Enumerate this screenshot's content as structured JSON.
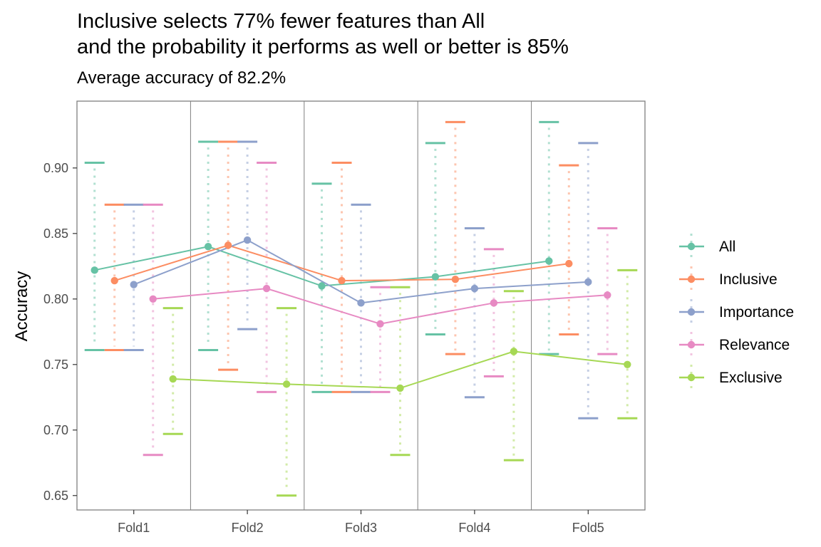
{
  "title_line1": "Inclusive selects 77% fewer features than All",
  "title_line2": "and the probability it performs as well or better is 85%",
  "subtitle": "Average accuracy of 82.2%",
  "chart_data": {
    "type": "line",
    "xlabel": "",
    "ylabel": "Accuracy",
    "ylim": [
      0.639,
      0.951
    ],
    "yticks": [
      0.65,
      0.7,
      0.75,
      0.8,
      0.85,
      0.9
    ],
    "ytick_labels": [
      "0.65",
      "0.70",
      "0.75",
      "0.80",
      "0.85",
      "0.90"
    ],
    "categories": [
      "Fold1",
      "Fold2",
      "Fold3",
      "Fold4",
      "Fold5"
    ],
    "grid": false,
    "legend_position": "right",
    "series": [
      {
        "name": "All",
        "color": "#66C2A5",
        "values": [
          0.822,
          0.84,
          0.81,
          0.817,
          0.829
        ],
        "max": [
          0.904,
          0.92,
          0.888,
          0.919,
          0.935
        ],
        "min": [
          0.761,
          0.761,
          0.729,
          0.773,
          0.758
        ]
      },
      {
        "name": "Inclusive",
        "color": "#FC8D62",
        "values": [
          0.814,
          0.841,
          0.814,
          0.815,
          0.827
        ],
        "max": [
          0.872,
          0.92,
          0.904,
          0.935,
          0.902
        ],
        "min": [
          0.761,
          0.746,
          0.729,
          0.758,
          0.773
        ]
      },
      {
        "name": "Importance",
        "color": "#8DA0CB",
        "values": [
          0.811,
          0.845,
          0.797,
          0.808,
          0.813
        ],
        "max": [
          0.872,
          0.92,
          0.872,
          0.854,
          0.919
        ],
        "min": [
          0.761,
          0.777,
          0.729,
          0.725,
          0.709
        ]
      },
      {
        "name": "Relevance",
        "color": "#E78AC3",
        "values": [
          0.8,
          0.808,
          0.781,
          0.797,
          0.803
        ],
        "max": [
          0.872,
          0.904,
          0.809,
          0.838,
          0.854
        ],
        "min": [
          0.681,
          0.729,
          0.729,
          0.741,
          0.758
        ]
      },
      {
        "name": "Exclusive",
        "color": "#A6D854",
        "values": [
          0.739,
          0.735,
          0.732,
          0.76,
          0.75
        ],
        "max": [
          0.793,
          0.793,
          0.809,
          0.806,
          0.822
        ],
        "min": [
          0.697,
          0.65,
          0.681,
          0.677,
          0.709
        ]
      }
    ]
  }
}
